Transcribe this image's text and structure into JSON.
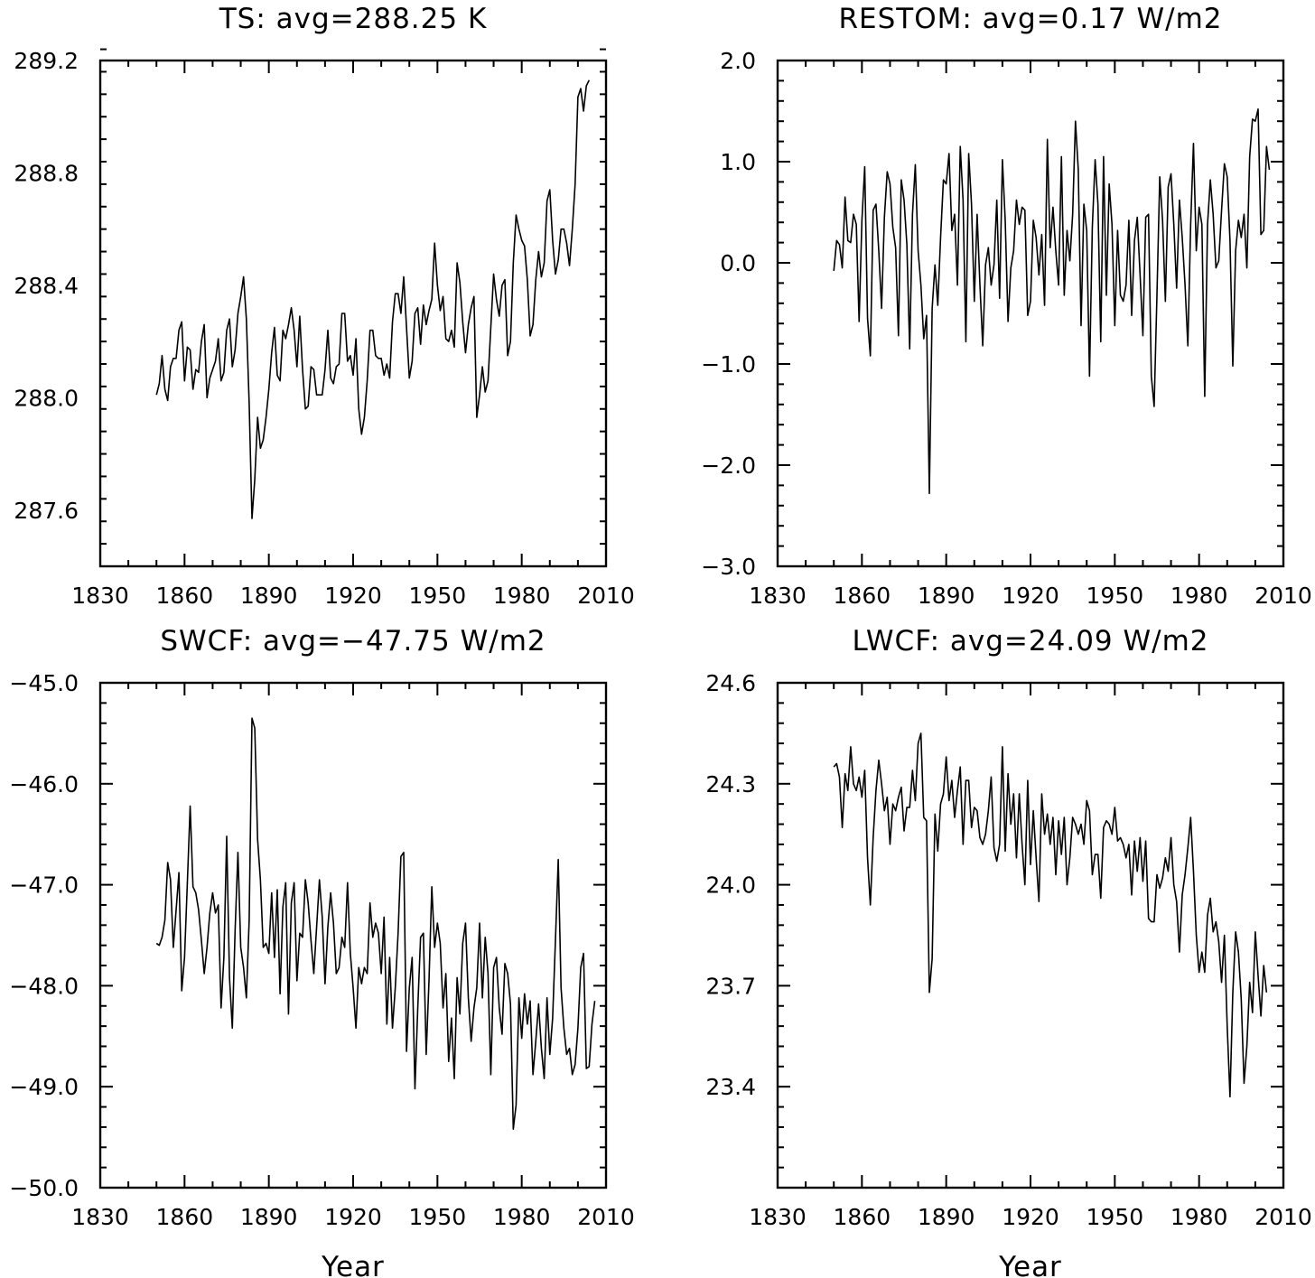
{
  "chart_data": [
    {
      "type": "line",
      "title": "TS: avg=288.25 K",
      "xlabel": "",
      "ylabel": "",
      "xlim": [
        1830,
        2010
      ],
      "ylim": [
        287.4,
        289.2
      ],
      "xticks": [
        1830,
        1860,
        1890,
        1920,
        1950,
        1980,
        2010
      ],
      "yticks": [
        287.6,
        288.0,
        288.4,
        288.8,
        289.2
      ],
      "ytick_labels": [
        "287.6",
        "288.0",
        "288.4",
        "288.8",
        "289.2"
      ],
      "x_start": 1850,
      "y": [
        288.01,
        288.05,
        288.15,
        288.03,
        287.99,
        288.11,
        288.14,
        288.14,
        288.24,
        288.27,
        288.06,
        288.18,
        288.17,
        288.03,
        288.1,
        288.09,
        288.2,
        288.26,
        288.0,
        288.07,
        288.1,
        288.13,
        288.21,
        288.06,
        288.09,
        288.24,
        288.28,
        288.11,
        288.17,
        288.3,
        288.36,
        288.43,
        288.28,
        287.98,
        287.57,
        287.71,
        287.93,
        287.82,
        287.85,
        287.93,
        288.03,
        288.16,
        288.25,
        288.08,
        288.06,
        288.24,
        288.21,
        288.26,
        288.32,
        288.24,
        288.11,
        288.29,
        288.1,
        287.96,
        287.97,
        288.11,
        288.1,
        288.01,
        288.01,
        288.01,
        288.1,
        288.24,
        288.07,
        288.05,
        288.11,
        288.12,
        288.3,
        288.3,
        288.13,
        288.15,
        288.08,
        288.21,
        287.96,
        287.87,
        287.93,
        288.06,
        288.24,
        288.24,
        288.15,
        288.14,
        288.14,
        288.08,
        288.12,
        288.07,
        288.27,
        288.37,
        288.37,
        288.3,
        288.43,
        288.25,
        288.07,
        288.13,
        288.3,
        288.32,
        288.19,
        288.33,
        288.26,
        288.31,
        288.35,
        288.55,
        288.4,
        288.31,
        288.36,
        288.21,
        288.2,
        288.24,
        288.18,
        288.48,
        288.41,
        288.27,
        288.16,
        288.26,
        288.32,
        288.36,
        287.93,
        288.01,
        288.11,
        288.02,
        288.06,
        288.25,
        288.44,
        288.35,
        288.29,
        288.4,
        288.42,
        288.15,
        288.2,
        288.48,
        288.65,
        288.6,
        288.56,
        288.54,
        288.42,
        288.22,
        288.26,
        288.42,
        288.52,
        288.43,
        288.48,
        288.7,
        288.74,
        288.56,
        288.44,
        288.49,
        288.6,
        288.6,
        288.55,
        288.47,
        288.6,
        288.76,
        289.07,
        289.1,
        289.02,
        289.11,
        289.13
      ]
    },
    {
      "type": "line",
      "title": "RESTOM: avg=0.17 W/m2",
      "xlabel": "",
      "ylabel": "",
      "xlim": [
        1830,
        2010
      ],
      "ylim": [
        -3.0,
        2.0
      ],
      "xticks": [
        1830,
        1860,
        1890,
        1920,
        1950,
        1980,
        2010
      ],
      "yticks": [
        -3.0,
        -2.0,
        -1.0,
        0.0,
        1.0,
        2.0
      ],
      "ytick_labels": [
        "−3.0",
        "−2.0",
        "−1.0",
        "0.0",
        "1.0",
        "2.0"
      ],
      "x_start": 1850,
      "y": [
        -0.08,
        0.22,
        0.18,
        -0.05,
        0.65,
        0.22,
        0.2,
        0.48,
        0.38,
        -0.58,
        0.42,
        0.95,
        -0.55,
        -0.92,
        0.52,
        0.58,
        0.12,
        -0.45,
        0.45,
        0.9,
        0.78,
        0.35,
        0.15,
        -0.72,
        0.82,
        0.62,
        0.18,
        -0.85,
        0.48,
        0.97,
        0.12,
        -0.22,
        -0.75,
        -0.52,
        -2.28,
        -0.45,
        -0.02,
        -0.42,
        0.25,
        0.82,
        0.78,
        1.08,
        0.32,
        0.48,
        -0.22,
        1.15,
        0.62,
        -0.78,
        1.08,
        0.58,
        -0.38,
        0.48,
        -0.22,
        -0.82,
        -0.02,
        0.15,
        -0.22,
        -0.02,
        0.62,
        -0.35,
        1.02,
        0.42,
        -0.58,
        -0.05,
        0.12,
        0.62,
        0.38,
        0.55,
        0.52,
        -0.52,
        -0.38,
        0.42,
        0.25,
        -0.12,
        0.28,
        -0.42,
        1.22,
        0.15,
        0.55,
        0.12,
        -0.22,
        1.05,
        -0.32,
        0.32,
        0.02,
        0.48,
        1.4,
        0.92,
        -0.62,
        0.58,
        0.32,
        -1.12,
        0.35,
        1.02,
        0.58,
        -0.78,
        1.05,
        -0.32,
        0.78,
        0.38,
        -0.62,
        0.32,
        -0.32,
        -0.38,
        -0.22,
        0.42,
        -0.52,
        0.22,
        0.45,
        -0.12,
        -0.72,
        0.45,
        0.48,
        -1.12,
        -1.42,
        -0.32,
        0.85,
        0.42,
        -0.38,
        0.75,
        0.88,
        0.38,
        -0.25,
        0.62,
        0.25,
        -0.22,
        -0.82,
        0.38,
        1.18,
        0.12,
        0.55,
        0.38,
        -1.32,
        0.38,
        0.82,
        0.48,
        -0.05,
        0.02,
        0.52,
        0.98,
        0.85,
        0.22,
        -1.02,
        0.12,
        0.42,
        0.25,
        0.48,
        -0.05,
        1.05,
        1.42,
        1.4,
        1.52,
        0.28,
        0.32,
        1.15,
        0.92
      ]
    },
    {
      "type": "line",
      "title": "SWCF: avg=−47.75 W/m2",
      "xlabel": "Year",
      "ylabel": "",
      "xlim": [
        1830,
        2010
      ],
      "ylim": [
        -50.0,
        -45.0
      ],
      "xticks": [
        1830,
        1860,
        1890,
        1920,
        1950,
        1980,
        2010
      ],
      "yticks": [
        -50.0,
        -49.0,
        -48.0,
        -47.0,
        -46.0,
        -45.0
      ],
      "ytick_labels": [
        "−50.0",
        "−49.0",
        "−48.0",
        "−47.0",
        "−46.0",
        "−45.0"
      ],
      "x_start": 1850,
      "y": [
        -47.58,
        -47.6,
        -47.52,
        -47.35,
        -46.78,
        -46.95,
        -47.62,
        -47.25,
        -46.88,
        -48.05,
        -47.72,
        -46.98,
        -46.22,
        -47.02,
        -47.08,
        -47.25,
        -47.55,
        -47.88,
        -47.62,
        -47.28,
        -47.08,
        -47.28,
        -47.2,
        -48.22,
        -47.72,
        -46.52,
        -47.92,
        -48.42,
        -47.45,
        -46.68,
        -47.62,
        -47.82,
        -48.12,
        -47.35,
        -45.35,
        -45.45,
        -46.55,
        -46.95,
        -47.62,
        -47.58,
        -47.68,
        -47.08,
        -47.72,
        -47.05,
        -48.08,
        -47.22,
        -46.98,
        -48.28,
        -47.18,
        -46.98,
        -47.95,
        -47.48,
        -47.52,
        -46.95,
        -47.18,
        -47.55,
        -47.88,
        -47.42,
        -46.95,
        -47.32,
        -47.98,
        -47.42,
        -47.08,
        -47.38,
        -47.88,
        -47.82,
        -47.52,
        -47.62,
        -46.98,
        -47.68,
        -48.02,
        -48.42,
        -47.82,
        -47.98,
        -47.82,
        -47.88,
        -47.18,
        -47.52,
        -47.38,
        -47.48,
        -47.88,
        -47.32,
        -48.38,
        -47.72,
        -48.42,
        -48.02,
        -47.48,
        -46.72,
        -46.68,
        -48.65,
        -48.02,
        -47.72,
        -49.02,
        -48.22,
        -47.52,
        -47.48,
        -48.68,
        -47.95,
        -47.02,
        -47.62,
        -47.38,
        -47.58,
        -48.22,
        -47.88,
        -48.75,
        -48.32,
        -48.92,
        -47.92,
        -48.28,
        -47.58,
        -47.38,
        -48.12,
        -48.55,
        -48.22,
        -48.02,
        -47.38,
        -48.12,
        -47.52,
        -47.88,
        -48.88,
        -47.82,
        -47.72,
        -48.22,
        -48.48,
        -47.78,
        -47.88,
        -48.18,
        -49.42,
        -49.18,
        -48.12,
        -48.52,
        -48.08,
        -48.38,
        -48.15,
        -48.88,
        -48.55,
        -48.18,
        -48.62,
        -48.92,
        -48.12,
        -48.68,
        -48.32,
        -47.55,
        -46.75,
        -48.02,
        -48.42,
        -48.68,
        -48.62,
        -48.88,
        -48.78,
        -48.42,
        -47.82,
        -47.68,
        -48.82,
        -48.8,
        -48.38,
        -48.15
      ]
    },
    {
      "type": "line",
      "title": "LWCF: avg=24.09 W/m2",
      "xlabel": "Year",
      "ylabel": "",
      "xlim": [
        1830,
        2010
      ],
      "ylim": [
        23.1,
        24.6
      ],
      "xticks": [
        1830,
        1860,
        1890,
        1920,
        1950,
        1980,
        2010
      ],
      "yticks": [
        23.4,
        23.7,
        24.0,
        24.3,
        24.6
      ],
      "ytick_labels": [
        "23.4",
        "23.7",
        "24.0",
        "24.3",
        "24.6"
      ],
      "x_start": 1850,
      "y": [
        24.35,
        24.36,
        24.32,
        24.17,
        24.33,
        24.28,
        24.41,
        24.3,
        24.28,
        24.32,
        24.26,
        24.34,
        24.08,
        23.94,
        24.14,
        24.28,
        24.37,
        24.3,
        24.22,
        24.26,
        24.12,
        24.24,
        24.22,
        24.26,
        24.29,
        24.16,
        24.23,
        24.23,
        24.34,
        24.25,
        24.42,
        24.45,
        24.2,
        24.19,
        23.68,
        23.78,
        24.21,
        24.1,
        24.24,
        24.27,
        24.38,
        24.25,
        24.31,
        24.2,
        24.28,
        24.35,
        24.12,
        24.31,
        24.31,
        24.17,
        24.23,
        24.22,
        24.14,
        24.12,
        24.15,
        24.22,
        24.32,
        24.11,
        24.07,
        24.12,
        24.41,
        24.1,
        24.33,
        24.18,
        24.27,
        24.08,
        24.27,
        24.12,
        24.0,
        24.31,
        24.06,
        24.22,
        24.08,
        23.95,
        24.27,
        24.15,
        24.21,
        24.12,
        24.2,
        24.03,
        24.19,
        24.09,
        24.2,
        24.0,
        24.08,
        24.2,
        24.18,
        24.15,
        24.18,
        24.12,
        24.25,
        24.22,
        24.03,
        24.09,
        24.09,
        23.96,
        24.17,
        24.19,
        24.18,
        24.15,
        24.23,
        24.13,
        24.14,
        24.12,
        24.08,
        24.12,
        23.97,
        24.13,
        24.04,
        24.14,
        24.01,
        24.13,
        23.9,
        23.89,
        23.89,
        24.03,
        23.99,
        24.02,
        24.08,
        24.04,
        24.14,
        24.0,
        23.95,
        23.8,
        23.97,
        24.03,
        24.11,
        24.2,
        24.04,
        23.85,
        23.74,
        23.8,
        23.74,
        23.91,
        23.96,
        23.86,
        23.89,
        23.83,
        23.71,
        23.85,
        23.58,
        23.37,
        23.68,
        23.86,
        23.8,
        23.66,
        23.41,
        23.52,
        23.71,
        23.62,
        23.86,
        23.73,
        23.61,
        23.76,
        23.68
      ]
    }
  ]
}
